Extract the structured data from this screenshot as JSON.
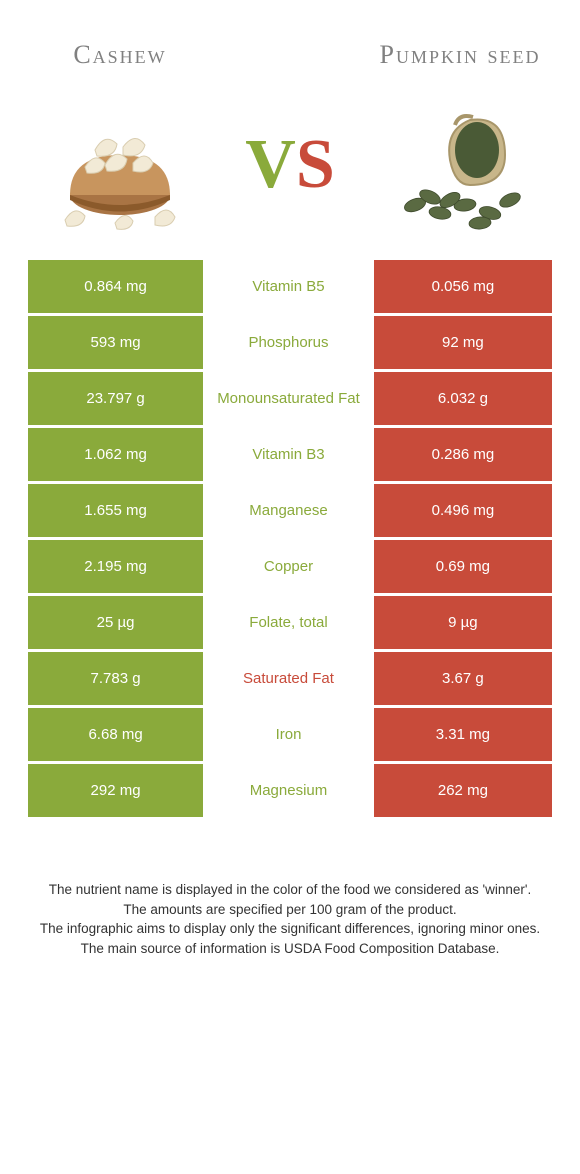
{
  "colors": {
    "green": "#8aaa3b",
    "red": "#c84b3a",
    "mid_bg": "#ffffff",
    "title_gray": "#808080",
    "white": "#ffffff"
  },
  "foods": {
    "left": {
      "name": "Cashew"
    },
    "right": {
      "name": "Pumpkin seed"
    }
  },
  "vs": {
    "v": "V",
    "s": "S"
  },
  "rows": [
    {
      "left": "0.864 mg",
      "mid": "Vitamin B5",
      "right": "0.056 mg",
      "winner": "left",
      "is_bad": false
    },
    {
      "left": "593 mg",
      "mid": "Phosphorus",
      "right": "92 mg",
      "winner": "left",
      "is_bad": false
    },
    {
      "left": "23.797 g",
      "mid": "Monounsaturated Fat",
      "right": "6.032 g",
      "winner": "left",
      "is_bad": false
    },
    {
      "left": "1.062 mg",
      "mid": "Vitamin B3",
      "right": "0.286 mg",
      "winner": "left",
      "is_bad": false
    },
    {
      "left": "1.655 mg",
      "mid": "Manganese",
      "right": "0.496 mg",
      "winner": "left",
      "is_bad": false
    },
    {
      "left": "2.195 mg",
      "mid": "Copper",
      "right": "0.69 mg",
      "winner": "left",
      "is_bad": false
    },
    {
      "left": "25 µg",
      "mid": "Folate, total",
      "right": "9 µg",
      "winner": "left",
      "is_bad": false
    },
    {
      "left": "7.783 g",
      "mid": "Saturated Fat",
      "right": "3.67 g",
      "winner": "left",
      "is_bad": true
    },
    {
      "left": "6.68 mg",
      "mid": "Iron",
      "right": "3.31 mg",
      "winner": "left",
      "is_bad": false
    },
    {
      "left": "292 mg",
      "mid": "Magnesium",
      "right": "262 mg",
      "winner": "left",
      "is_bad": false
    }
  ],
  "footer": {
    "l1": "The nutrient name is displayed in the color of the food we considered as 'winner'.",
    "l2": "The amounts are specified per 100 gram of the product.",
    "l3": "The infographic aims to display only the significant differences, ignoring minor ones.",
    "l4": "The main source of information is USDA Food Composition Database."
  }
}
